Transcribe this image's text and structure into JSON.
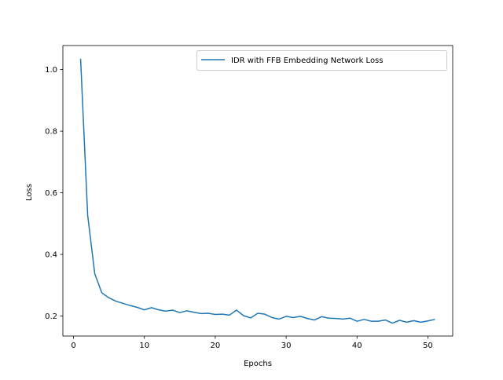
{
  "chart_data": {
    "type": "line",
    "title": "",
    "xlabel": "Epochs",
    "ylabel": "Loss",
    "xlim": [
      -1.5,
      53.5
    ],
    "ylim": [
      0.135,
      1.078
    ],
    "xticks": [
      0,
      10,
      20,
      30,
      40,
      50
    ],
    "xtick_labels": [
      "0",
      "10",
      "20",
      "30",
      "40",
      "50"
    ],
    "yticks": [
      0.2,
      0.4,
      0.6,
      0.8,
      1.0
    ],
    "ytick_labels": [
      "0.2",
      "0.4",
      "0.6",
      "0.8",
      "1.0"
    ],
    "grid": false,
    "legend_position": "top-right",
    "series": [
      {
        "name": "IDR with FFB Embedding Network Loss",
        "color": "#1f77b4",
        "x": [
          1,
          2,
          3,
          4,
          5,
          6,
          7,
          8,
          9,
          10,
          11,
          12,
          13,
          14,
          15,
          16,
          17,
          18,
          19,
          20,
          21,
          22,
          23,
          24,
          25,
          26,
          27,
          28,
          29,
          30,
          31,
          32,
          33,
          34,
          35,
          36,
          37,
          38,
          39,
          40,
          41,
          42,
          43,
          44,
          45,
          46,
          47,
          48,
          49,
          50,
          51
        ],
        "y": [
          1.035,
          0.527,
          0.337,
          0.275,
          0.259,
          0.248,
          0.241,
          0.234,
          0.228,
          0.22,
          0.227,
          0.22,
          0.216,
          0.219,
          0.211,
          0.217,
          0.212,
          0.208,
          0.209,
          0.205,
          0.206,
          0.203,
          0.219,
          0.201,
          0.194,
          0.209,
          0.206,
          0.195,
          0.19,
          0.199,
          0.195,
          0.199,
          0.192,
          0.187,
          0.198,
          0.193,
          0.192,
          0.19,
          0.193,
          0.183,
          0.189,
          0.183,
          0.183,
          0.187,
          0.177,
          0.186,
          0.18,
          0.185,
          0.18,
          0.184,
          0.189
        ]
      }
    ]
  }
}
